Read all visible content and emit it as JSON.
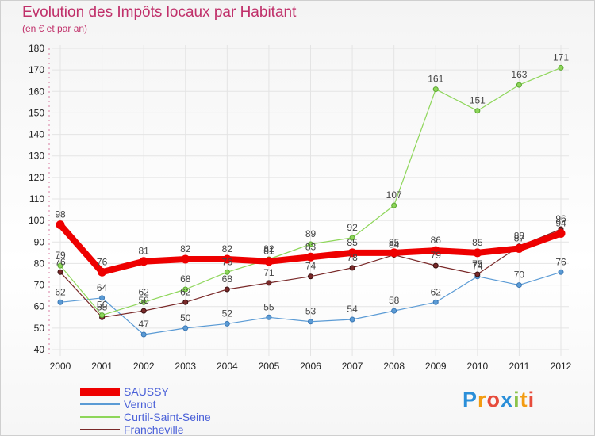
{
  "page": {
    "title": "Evolution des Impôts locaux par Habitant",
    "subtitle": "(en € et par an)"
  },
  "chart_data": {
    "type": "line",
    "title": "Evolution des Impôts locaux par Habitant",
    "subtitle": "(en € et par an)",
    "xlabel": "",
    "ylabel": "",
    "ylim": [
      40,
      180
    ],
    "ytick_step": 10,
    "yticks": [
      "40",
      "50",
      "60",
      "70",
      "80",
      "90",
      "100",
      "110",
      "120",
      "130",
      "140",
      "150",
      "160",
      "170",
      "180"
    ],
    "x": [
      "2000",
      "2001",
      "2002",
      "2003",
      "2004",
      "2005",
      "2006",
      "2007",
      "2008",
      "2009",
      "2010",
      "2011",
      "2012"
    ],
    "grid": true,
    "legend_position": "bottom-left",
    "series": [
      {
        "name": "SAUSSY",
        "color": "#ee0000",
        "values": [
          98,
          76,
          81,
          82,
          82,
          81,
          83,
          85,
          85,
          86,
          85,
          87,
          94
        ],
        "labels": [
          "98",
          "76",
          "81",
          "82",
          "82",
          "81",
          "83",
          "85",
          "85",
          "86",
          "85",
          "87",
          "94"
        ]
      },
      {
        "name": "Vernot",
        "color": "#5b9bd5",
        "values": [
          62,
          64,
          47,
          50,
          52,
          55,
          53,
          54,
          58,
          62,
          74,
          70,
          76
        ],
        "labels": [
          "62",
          "64",
          "47",
          "50",
          "52",
          "55",
          "53",
          "54",
          "58",
          "62",
          "74",
          "70",
          "76"
        ]
      },
      {
        "name": "Curtil-Saint-Seine",
        "color": "#8ed65a",
        "values": [
          79,
          56,
          62,
          68,
          76,
          82,
          89,
          92,
          107,
          161,
          151,
          163,
          171
        ],
        "labels": [
          "79",
          "56",
          "62",
          "68",
          "76",
          "82",
          "89",
          "92",
          "107",
          "161",
          "151",
          "163",
          "171"
        ]
      },
      {
        "name": "Francheville",
        "color": "#7a2a2a",
        "values": [
          76,
          55,
          58,
          62,
          68,
          71,
          74,
          78,
          84,
          79,
          75,
          88,
          96
        ],
        "labels": [
          "76",
          "55",
          "58",
          "62",
          "68",
          "71",
          "74",
          "78",
          "84",
          "79",
          "75",
          "88",
          "96"
        ]
      }
    ]
  },
  "legend": {
    "items": [
      "SAUSSY",
      "Vernot",
      "Curtil-Saint-Seine",
      "Francheville"
    ],
    "colors": [
      "#ee0000",
      "#5b9bd5",
      "#8ed65a",
      "#7a2a2a"
    ]
  },
  "brand": {
    "letters": [
      "P",
      "r",
      "o",
      "x",
      "i",
      "t",
      "i"
    ],
    "colors": [
      "#2a8fd9",
      "#f39c12",
      "#e74c3c",
      "#2a8fd9",
      "#8bc34a",
      "#f39c12",
      "#e74c3c"
    ]
  }
}
